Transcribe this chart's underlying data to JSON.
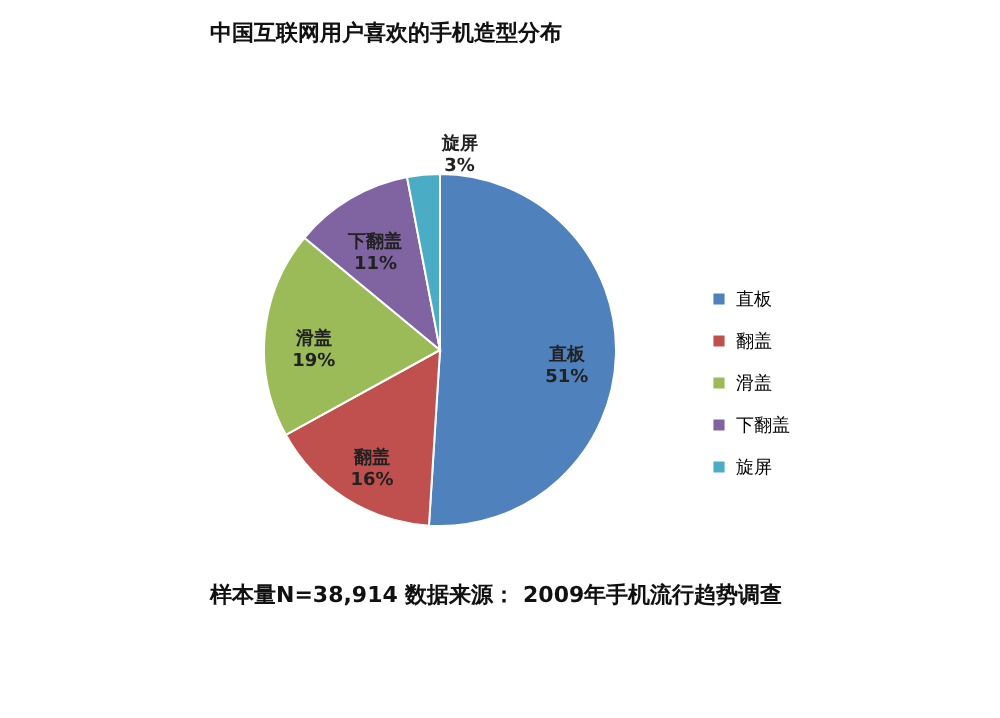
{
  "chart_data": {
    "type": "pie",
    "title": "中国互联网用户喜欢的手机造型分布",
    "categories": [
      "直板",
      "翻盖",
      "滑盖",
      "下翻盖",
      "旋屏"
    ],
    "values": [
      51,
      16,
      19,
      11,
      3
    ],
    "value_labels": [
      "51%",
      "16%",
      "19%",
      "11%",
      "3%"
    ],
    "colors": [
      "#4f81bd",
      "#c0504d",
      "#9bbb59",
      "#8064a2",
      "#4bacc6"
    ],
    "legend": "right",
    "annotations": [
      "样本量N=38,914    数据来源： 2009年手机流行趋势调查"
    ]
  }
}
